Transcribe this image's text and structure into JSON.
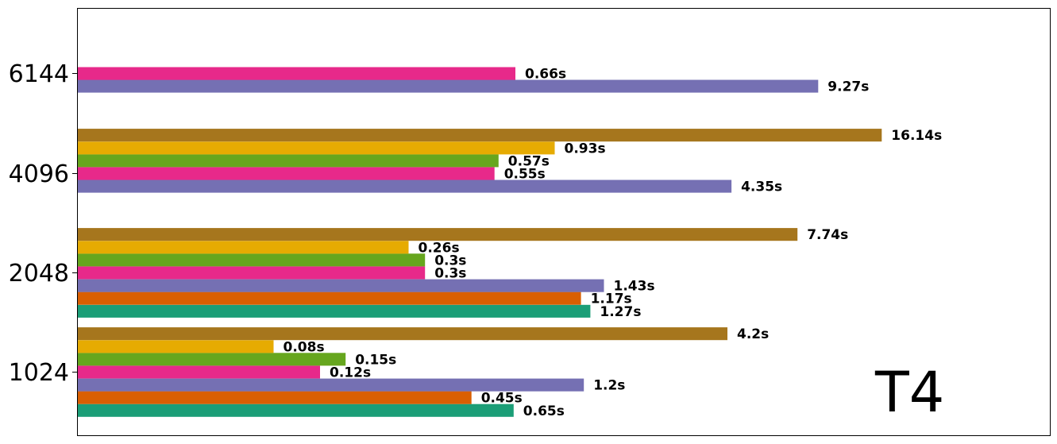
{
  "chart_data": {
    "type": "bar",
    "orientation": "horizontal",
    "title": "",
    "panel_label": "T4",
    "xlabel": "",
    "ylabel": "",
    "x_scale": "log",
    "xlim": [
      0.0145,
      70
    ],
    "categories": [
      "1024",
      "2048",
      "4096",
      "6144"
    ],
    "series": [
      {
        "name": "series-1",
        "color": "#1b9e77",
        "values": [
          0.65,
          1.27,
          null,
          null
        ],
        "labels": [
          "0.65s",
          "1.27s",
          null,
          null
        ]
      },
      {
        "name": "series-2",
        "color": "#d95f02",
        "values": [
          0.45,
          1.17,
          null,
          null
        ],
        "labels": [
          "0.45s",
          "1.17s",
          null,
          null
        ]
      },
      {
        "name": "series-3",
        "color": "#7570b3",
        "values": [
          1.2,
          1.43,
          4.35,
          9.27
        ],
        "labels": [
          "1.2s",
          "1.43s",
          "4.35s",
          "9.27s"
        ]
      },
      {
        "name": "series-4",
        "color": "#e7298a",
        "values": [
          0.12,
          0.3,
          0.55,
          0.66
        ],
        "labels": [
          "0.12s",
          "0.3s",
          "0.55s",
          "0.66s"
        ]
      },
      {
        "name": "series-5",
        "color": "#66a61e",
        "values": [
          0.15,
          0.3,
          0.57,
          null
        ],
        "labels": [
          "0.15s",
          "0.3s",
          "0.57s",
          null
        ]
      },
      {
        "name": "series-6",
        "color": "#e6ab02",
        "values": [
          0.08,
          0.26,
          0.93,
          null
        ],
        "labels": [
          "0.08s",
          "0.26s",
          "0.93s",
          null
        ]
      },
      {
        "name": "series-7",
        "color": "#a6761d",
        "values": [
          4.2,
          7.74,
          16.14,
          null
        ],
        "labels": [
          "4.2s",
          "7.74s",
          "16.14s",
          null
        ]
      }
    ],
    "grid": false,
    "legend": "none"
  }
}
